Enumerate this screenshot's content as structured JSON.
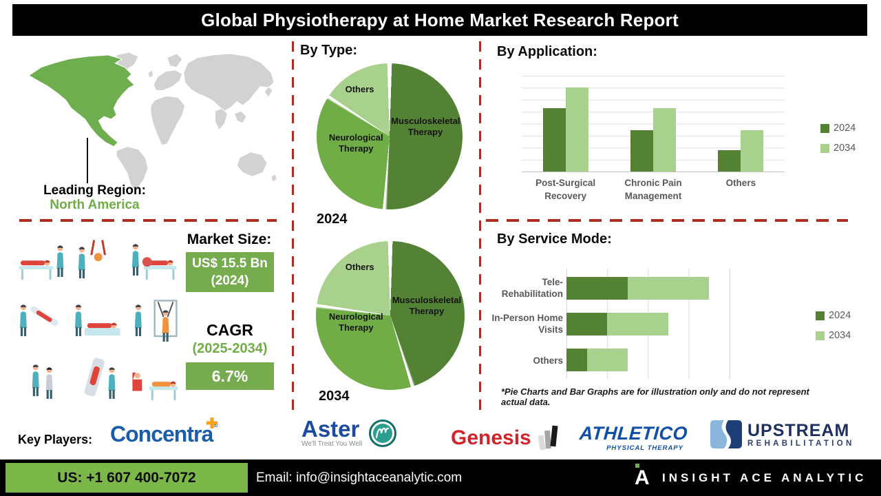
{
  "title": "Global Physiotherapy at Home Market Research Report",
  "leading_region": {
    "label": "Leading Region:",
    "value": "North America"
  },
  "sections": {
    "by_type": {
      "heading": "By Type:"
    },
    "by_application": {
      "heading": "By Application:"
    },
    "by_service_mode": {
      "heading": "By Service Mode:",
      "footnote": "*Pie Charts and Bar Graphs are for illustration only and do not represent actual data."
    }
  },
  "market": {
    "size_label": "Market Size:",
    "size_value": "US$ 15.5 Bn",
    "size_year": "(2024)",
    "cagr_label": "CAGR",
    "cagr_period": "(2025-2034)",
    "cagr_value": "6.7%"
  },
  "key_players": {
    "label": "Key Players:",
    "concentra": {
      "name": "Concentra",
      "reg": "®"
    },
    "aster": {
      "name": "Aster",
      "tagline": "We'll Treat You Well"
    },
    "genesis": {
      "name": "Genesis"
    },
    "athletico": {
      "name": "ATHLETICO",
      "subtext": "PHYSICAL THERAPY"
    },
    "upstream": {
      "name": "UPSTREAM",
      "subtext": "REHABILITATION"
    }
  },
  "footer": {
    "phone": "US: +1 607 400-7072",
    "email": "Email: info@insightaceanalytic.com",
    "brand": "INSIGHT ACE ANALYTIC",
    "brand_initial": "A"
  },
  "colors": {
    "dark_green": "#548235",
    "mid_green": "#70AD47",
    "light_green": "#A9D18E",
    "map_green": "#6FAE4E",
    "map_gray": "#D2D2D2",
    "dashed_red": "#B02B22",
    "footer_green": "#7CB74A",
    "box_green": "#76AB4E"
  },
  "chart_data": [
    {
      "type": "pie",
      "title": "By Type: 2024",
      "year": "2024",
      "labels": [
        "Musculoskeletal Therapy",
        "Neurological Therapy",
        "Others"
      ],
      "values": [
        51,
        33,
        16
      ],
      "colors": [
        "#548235",
        "#70AD47",
        "#A9D18E"
      ],
      "note": "illustrative only"
    },
    {
      "type": "pie",
      "title": "By Type: 2034",
      "year": "2034",
      "labels": [
        "Musculoskeletal Therapy",
        "Neurological Therapy",
        "Others"
      ],
      "values": [
        45,
        32,
        23
      ],
      "colors": [
        "#548235",
        "#70AD47",
        "#A9D18E"
      ],
      "note": "illustrative only"
    },
    {
      "type": "bar",
      "title": "By Application:",
      "categories": [
        "Post-Surgical Recovery",
        "Chronic Pain Management",
        "Others"
      ],
      "series": [
        {
          "name": "2024",
          "color": "#548235",
          "values": [
            6.6,
            4.3,
            2.2
          ]
        },
        {
          "name": "2034",
          "color": "#A9D18E",
          "values": [
            8.7,
            6.6,
            4.3
          ]
        }
      ],
      "ylim": [
        0,
        10
      ],
      "grid": true,
      "legend_position": "right",
      "note": "illustrative only"
    },
    {
      "type": "bar",
      "orientation": "horizontal-stacked",
      "title": "By Service Mode:",
      "categories": [
        "Tele-Rehabilitation",
        "In-Person Home Visits",
        "Others"
      ],
      "series": [
        {
          "name": "2024",
          "color": "#548235",
          "values": [
            1.5,
            1.0,
            0.5
          ]
        },
        {
          "name": "2034",
          "color": "#A9D18E",
          "values": [
            2.0,
            1.5,
            1.0
          ]
        }
      ],
      "xlim": [
        0,
        4
      ],
      "grid": true,
      "legend_position": "right",
      "note": "illustrative only"
    }
  ]
}
